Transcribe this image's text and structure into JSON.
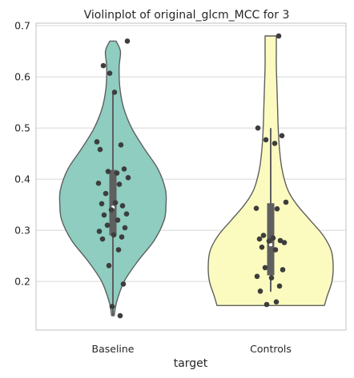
{
  "chart_data": {
    "type": "violin",
    "title": "Violinplot of original_glcm_MCC for 3",
    "xlabel": "target",
    "ylabel": "",
    "ylim": [
      0.105,
      0.705
    ],
    "yticks": [
      0.2,
      0.3,
      0.4,
      0.5,
      0.6,
      0.7
    ],
    "ytick_labels": [
      "0.2",
      "0.3",
      "0.4",
      "0.5",
      "0.6",
      "0.7"
    ],
    "grid": true,
    "categories": [
      "Baseline",
      "Controls"
    ],
    "colors": [
      "#8ecdc0",
      "#fbfbbf"
    ],
    "series": [
      {
        "category": "Baseline",
        "box": {
          "whisker_low": 0.133,
          "q1": 0.29,
          "median": 0.345,
          "q3": 0.418,
          "whisker_high": 0.57
        },
        "points": [
          0.67,
          0.622,
          0.607,
          0.57,
          0.473,
          0.467,
          0.458,
          0.42,
          0.415,
          0.412,
          0.403,
          0.392,
          0.39,
          0.372,
          0.354,
          0.352,
          0.348,
          0.34,
          0.332,
          0.33,
          0.32,
          0.31,
          0.305,
          0.298,
          0.291,
          0.287,
          0.283,
          0.262,
          0.231,
          0.195,
          0.151,
          0.133
        ],
        "violin": {
          "y_min": 0.133,
          "y_max": 0.67,
          "profile": [
            [
              0.133,
              0.02
            ],
            [
              0.16,
              0.06
            ],
            [
              0.2,
              0.18
            ],
            [
              0.24,
              0.4
            ],
            [
              0.28,
              0.66
            ],
            [
              0.32,
              0.82
            ],
            [
              0.35,
              0.85
            ],
            [
              0.38,
              0.84
            ],
            [
              0.42,
              0.72
            ],
            [
              0.46,
              0.5
            ],
            [
              0.5,
              0.3
            ],
            [
              0.54,
              0.17
            ],
            [
              0.58,
              0.11
            ],
            [
              0.62,
              0.1
            ],
            [
              0.65,
              0.12
            ],
            [
              0.67,
              0.05
            ]
          ]
        }
      },
      {
        "category": "Controls",
        "box": {
          "whisker_low": 0.18,
          "q1": 0.212,
          "median": 0.272,
          "q3": 0.353,
          "whisker_high": 0.5
        },
        "points": [
          0.68,
          0.5,
          0.485,
          0.477,
          0.47,
          0.355,
          0.343,
          0.342,
          0.29,
          0.285,
          0.283,
          0.28,
          0.279,
          0.276,
          0.267,
          0.262,
          0.227,
          0.223,
          0.21,
          0.207,
          0.191,
          0.181,
          0.16,
          0.155
        ],
        "violin": {
          "y_min": 0.153,
          "y_max": 0.68,
          "profile": [
            [
              0.153,
              0.86
            ],
            [
              0.17,
              0.9
            ],
            [
              0.2,
              0.98
            ],
            [
              0.23,
              1.0
            ],
            [
              0.26,
              0.97
            ],
            [
              0.29,
              0.84
            ],
            [
              0.32,
              0.63
            ],
            [
              0.35,
              0.42
            ],
            [
              0.38,
              0.27
            ],
            [
              0.42,
              0.18
            ],
            [
              0.46,
              0.14
            ],
            [
              0.5,
              0.12
            ],
            [
              0.54,
              0.11
            ],
            [
              0.58,
              0.1
            ],
            [
              0.62,
              0.09
            ],
            [
              0.65,
              0.09
            ],
            [
              0.68,
              0.09
            ]
          ]
        }
      }
    ]
  }
}
